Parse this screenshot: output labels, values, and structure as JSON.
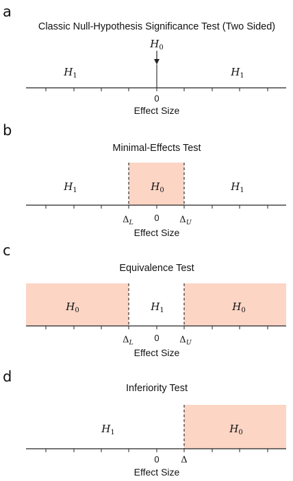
{
  "colors": {
    "region": "#fcd5c5",
    "line": "#222222"
  },
  "panels": [
    {
      "letter": "a",
      "title": "Classic Null-Hypothesis Significance Test (Two Sided)",
      "h_left": "H",
      "h_left_sub": "1",
      "h_right": "H",
      "h_right_sub": "1",
      "h0_label": "H",
      "h0_sub": "0",
      "tick_zero": "0",
      "xlabel": "Effect Size"
    },
    {
      "letter": "b",
      "title": "Minimal-Effects Test",
      "h_left": "H",
      "h_left_sub": "1",
      "h_center": "H",
      "h_center_sub": "0",
      "h_right": "H",
      "h_right_sub": "1",
      "bound_lower": "Δ",
      "bound_lower_sub": "L",
      "tick_zero": "0",
      "bound_upper": "Δ",
      "bound_upper_sub": "U",
      "xlabel": "Effect Size"
    },
    {
      "letter": "c",
      "title": "Equivalence Test",
      "h_left": "H",
      "h_left_sub": "0",
      "h_center": "H",
      "h_center_sub": "1",
      "h_right": "H",
      "h_right_sub": "0",
      "bound_lower": "Δ",
      "bound_lower_sub": "L",
      "tick_zero": "0",
      "bound_upper": "Δ",
      "bound_upper_sub": "U",
      "xlabel": "Effect Size"
    },
    {
      "letter": "d",
      "title": "Inferiority Test",
      "h_left": "H",
      "h_left_sub": "1",
      "h_right": "H",
      "h_right_sub": "0",
      "tick_zero": "0",
      "bound": "Δ",
      "xlabel": "Effect Size"
    }
  ]
}
